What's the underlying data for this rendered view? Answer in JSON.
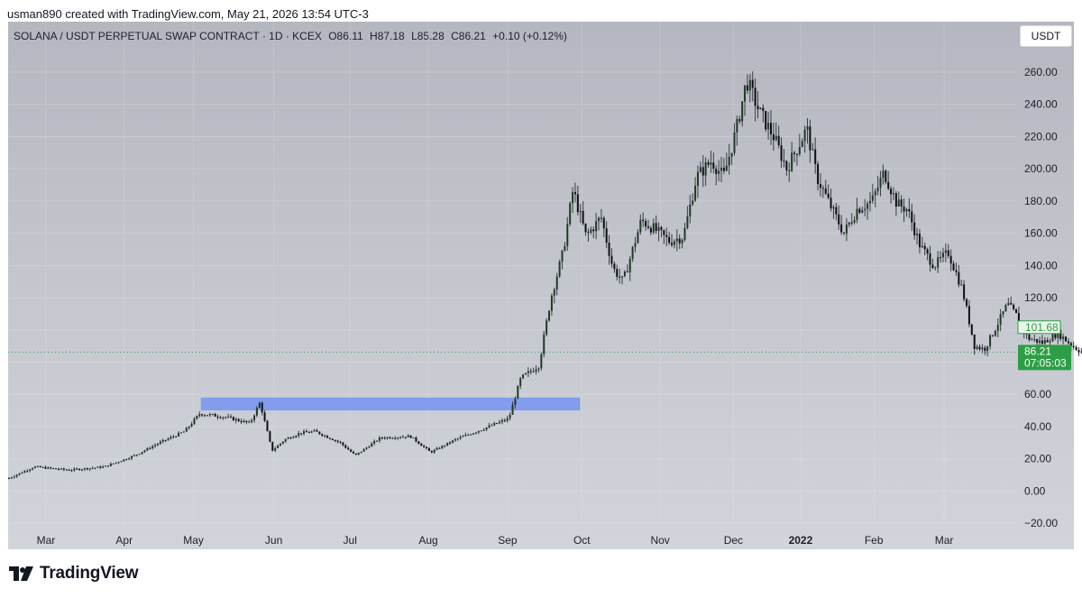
{
  "credit": "usman890 created with TradingView.com, May 21, 2026 13:54 UTC-3",
  "header": {
    "symbol": "SOLANA / USDT PERPETUAL SWAP CONTRACT · 1D · KCEX",
    "open": "O86.11",
    "high": "H87.18",
    "low": "L85.28",
    "close": "C86.21",
    "change": "+0.10 (+0.12%)"
  },
  "currency_button": "USDT",
  "brand": "TradingView",
  "colors": {
    "up_body": "#1f3a24",
    "down_body": "#0d0f12",
    "wick": "#3a3d45",
    "zone": "#7b98ee",
    "price_tag": "#2e9e44",
    "prev_tag_border": "#2e9e44"
  },
  "chart_data": {
    "type": "candlestick",
    "ylim": [
      -25,
      265
    ],
    "y_ticks": [
      "260.00",
      "240.00",
      "220.00",
      "200.00",
      "180.00",
      "160.00",
      "140.00",
      "120.00",
      "100.00",
      "80.00",
      "60.00",
      "40.00",
      "20.00",
      "0.00",
      "−20.00"
    ],
    "y_tick_values": [
      260,
      240,
      220,
      200,
      180,
      160,
      140,
      120,
      100,
      80,
      60,
      40,
      20,
      0,
      -20
    ],
    "x_labels": [
      "Mar",
      "Apr",
      "May",
      "Jun",
      "Jul",
      "Aug",
      "Sep",
      "Oct",
      "Nov",
      "Dec",
      "2022",
      "Feb",
      "Mar"
    ],
    "x_label_bold": [
      false,
      false,
      false,
      false,
      false,
      false,
      false,
      false,
      false,
      false,
      true,
      false,
      false
    ],
    "x_index_range": [
      0,
      1000
    ],
    "x_label_positions": [
      35,
      113,
      182,
      262,
      338,
      416,
      495,
      569,
      647,
      720,
      787,
      860,
      930
    ],
    "price_path": [
      [
        0,
        8
      ],
      [
        25,
        15
      ],
      [
        60,
        13
      ],
      [
        95,
        15
      ],
      [
        125,
        22
      ],
      [
        150,
        30
      ],
      [
        175,
        37
      ],
      [
        190,
        48
      ],
      [
        215,
        46
      ],
      [
        240,
        42
      ],
      [
        250,
        55
      ],
      [
        262,
        25
      ],
      [
        275,
        32
      ],
      [
        290,
        36
      ],
      [
        305,
        37
      ],
      [
        330,
        30
      ],
      [
        345,
        22
      ],
      [
        370,
        33
      ],
      [
        400,
        34
      ],
      [
        420,
        24
      ],
      [
        445,
        32
      ],
      [
        470,
        38
      ],
      [
        498,
        45
      ],
      [
        510,
        70
      ],
      [
        528,
        78
      ],
      [
        540,
        120
      ],
      [
        552,
        148
      ],
      [
        562,
        187
      ],
      [
        575,
        158
      ],
      [
        590,
        170
      ],
      [
        602,
        138
      ],
      [
        612,
        130
      ],
      [
        630,
        168
      ],
      [
        642,
        163
      ],
      [
        658,
        155
      ],
      [
        672,
        158
      ],
      [
        685,
        195
      ],
      [
        700,
        205
      ],
      [
        712,
        195
      ],
      [
        725,
        225
      ],
      [
        735,
        255
      ],
      [
        748,
        235
      ],
      [
        762,
        220
      ],
      [
        775,
        200
      ],
      [
        795,
        225
      ],
      [
        805,
        195
      ],
      [
        820,
        175
      ],
      [
        832,
        160
      ],
      [
        845,
        175
      ],
      [
        860,
        180
      ],
      [
        872,
        198
      ],
      [
        885,
        178
      ],
      [
        895,
        175
      ],
      [
        908,
        152
      ],
      [
        922,
        140
      ],
      [
        936,
        148
      ],
      [
        950,
        125
      ],
      [
        962,
        90
      ],
      [
        972,
        88
      ],
      [
        982,
        100
      ],
      [
        995,
        116
      ],
      [
        1005,
        108
      ],
      [
        1015,
        95
      ],
      [
        1030,
        92
      ],
      [
        1045,
        98
      ],
      [
        1060,
        90
      ],
      [
        1075,
        84
      ],
      [
        1090,
        86
      ],
      [
        1105,
        92
      ],
      [
        1120,
        101
      ]
    ],
    "zone": {
      "x_start": 192,
      "x_end": 570,
      "y_low": 50,
      "y_high": 58
    },
    "current_price": 86.21,
    "current_price_label": "86.21",
    "countdown": "07:05:03",
    "prev_close": 101.68,
    "prev_close_label": "101.68"
  }
}
